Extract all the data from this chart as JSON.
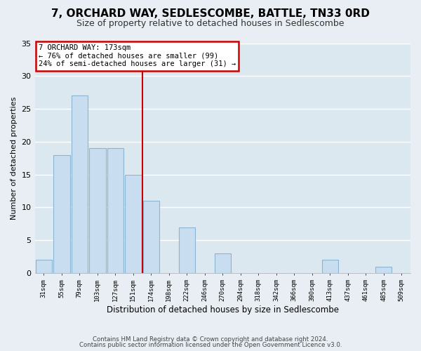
{
  "title": "7, ORCHARD WAY, SEDLESCOMBE, BATTLE, TN33 0RD",
  "subtitle": "Size of property relative to detached houses in Sedlescombe",
  "xlabel": "Distribution of detached houses by size in Sedlescombe",
  "ylabel": "Number of detached properties",
  "footer_line1": "Contains HM Land Registry data © Crown copyright and database right 2024.",
  "footer_line2": "Contains public sector information licensed under the Open Government Licence v3.0.",
  "bin_labels": [
    "31sqm",
    "55sqm",
    "79sqm",
    "103sqm",
    "127sqm",
    "151sqm",
    "174sqm",
    "198sqm",
    "222sqm",
    "246sqm",
    "270sqm",
    "294sqm",
    "318sqm",
    "342sqm",
    "366sqm",
    "390sqm",
    "413sqm",
    "437sqm",
    "461sqm",
    "485sqm",
    "509sqm"
  ],
  "bar_values": [
    2,
    18,
    27,
    19,
    19,
    15,
    11,
    0,
    7,
    0,
    3,
    0,
    0,
    0,
    0,
    0,
    2,
    0,
    0,
    1,
    0
  ],
  "bar_color": "#c8ddef",
  "bar_edge_color": "#8ab4d0",
  "vline_color": "#cc0000",
  "ylim": [
    0,
    35
  ],
  "yticks": [
    0,
    5,
    10,
    15,
    20,
    25,
    30,
    35
  ],
  "annotation_line1": "7 ORCHARD WAY: 173sqm",
  "annotation_line2": "← 76% of detached houses are smaller (99)",
  "annotation_line3": "24% of semi-detached houses are larger (31) →",
  "annotation_box_color": "#ffffff",
  "annotation_border_color": "#cc0000",
  "background_color": "#e8eef4",
  "plot_bg_color": "#dce8f0",
  "grid_color": "#ffffff",
  "title_fontsize": 11,
  "subtitle_fontsize": 9
}
